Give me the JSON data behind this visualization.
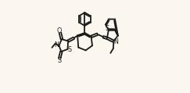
{
  "bg_color": "#fbf6ee",
  "line_color": "#1a1a1a",
  "lw": 1.3,
  "figsize": [
    2.43,
    1.19
  ],
  "dpi": 100,
  "xlim": [
    0.0,
    1.0
  ],
  "ylim": [
    0.0,
    1.0
  ],
  "label_S_ring": "S",
  "label_N": "N",
  "label_O": "O",
  "label_S_thioxo": "S",
  "label_S_bt": "S",
  "label_N_bt": "N"
}
